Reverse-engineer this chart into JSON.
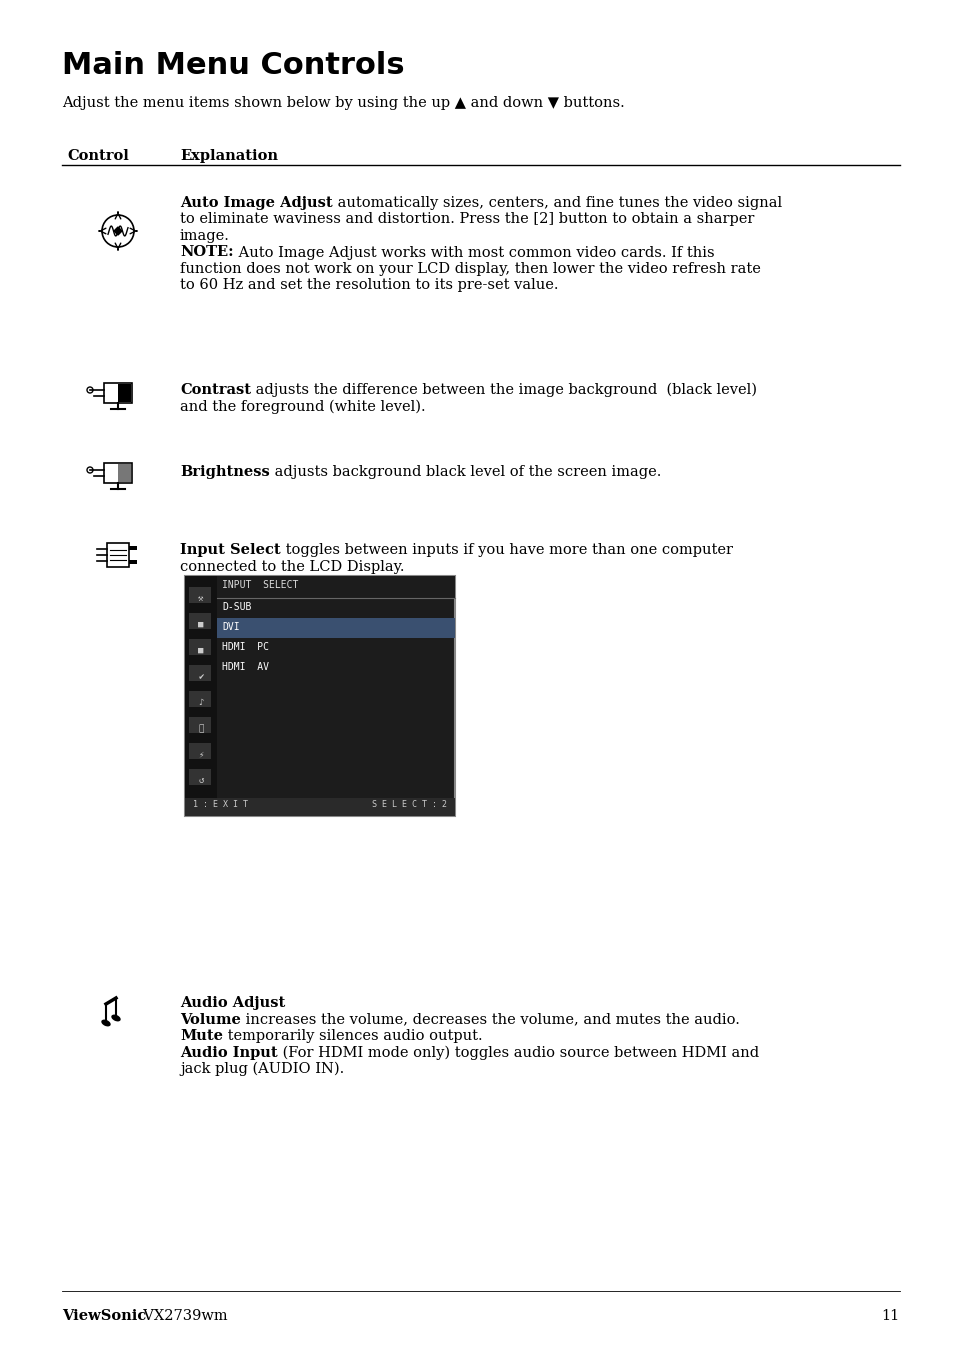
{
  "title": "Main Menu Controls",
  "subtitle": "Adjust the menu items shown below by using the up ▲ and down ▼ buttons.",
  "col1_header": "Control",
  "col2_header": "Explanation",
  "bg_color": "#ffffff",
  "text_color": "#000000",
  "page_number": "11",
  "footer_brand": "ViewSonic",
  "footer_model": "VX2739wm",
  "screen_menu": {
    "title": "INPUT  SELECT",
    "items": [
      "D-SUB",
      "DVI",
      "HDMI  PC",
      "HDMI  AV"
    ],
    "highlighted": 1,
    "footer_left": "1:EXIT",
    "footer_right": "SELECT:2"
  },
  "audio_lines": [
    {
      "bold": "Volume",
      "normal": " increases the volume, decreases the volume, and mutes the audio."
    },
    {
      "bold": "Mute",
      "normal": " temporarily silences audio output."
    },
    {
      "bold": "Audio Input",
      "normal": " (For HDMI mode only) toggles audio source between HDMI and\njack plug (AUDIO IN)."
    }
  ]
}
